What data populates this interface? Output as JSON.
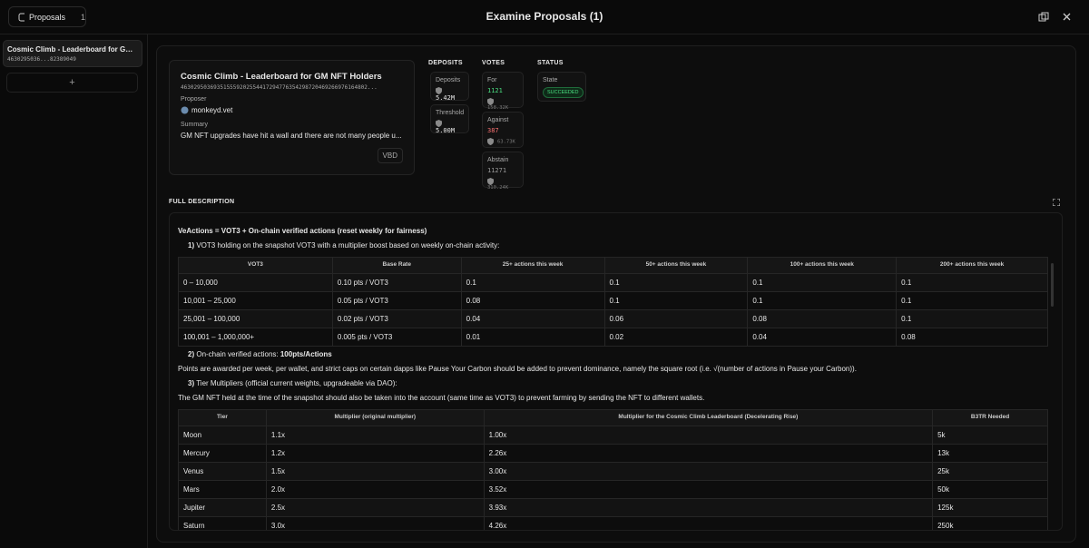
{
  "header": {
    "proposals_button": "Proposals",
    "proposals_count": "1",
    "title": "Examine Proposals (1)"
  },
  "sidebar": {
    "items": [
      {
        "title": "Cosmic Climb - Leaderboard for GM NFT Holders",
        "id": "4630295036...82389049"
      }
    ]
  },
  "proposal": {
    "title": "Cosmic Climb - Leaderboard for GM NFT Holders",
    "id": "463029503693515559202554417294776354298720469266976164802...",
    "proposer_label": "Proposer",
    "proposer": "monkeyd.vet",
    "summary_label": "Summary",
    "summary": "GM NFT upgrades have hit a wall and there are not many people u...",
    "tag": "VBD"
  },
  "deposits": {
    "heading": "DEPOSITS",
    "items": [
      {
        "label": "Deposits",
        "value": "5.42M"
      },
      {
        "label": "Threshold",
        "value": "5.00M"
      }
    ]
  },
  "votes": {
    "heading": "VOTES",
    "items": [
      {
        "label": "For",
        "count": "1121",
        "power": "158.32K"
      },
      {
        "label": "Against",
        "count": "387",
        "power": "63.73K"
      },
      {
        "label": "Abstain",
        "count": "11271",
        "power": "310.24K"
      }
    ]
  },
  "status": {
    "heading": "STATUS",
    "label": "State",
    "value": "SUCCEEDED"
  },
  "description": {
    "heading": "FULL DESCRIPTION",
    "p1": "VeActions = VOT3 + On-chain verified actions (reset weekly for fairness)",
    "p2_num": "1)",
    "p2": " VOT3 holding on the snapshot VOT3 with a multiplier boost based on weekly on-chain activity:",
    "table1": {
      "header": [
        "VOT3",
        "Base Rate",
        "25+ actions this week",
        "50+ actions this week",
        "100+ actions this week",
        "200+ actions this week"
      ],
      "rows": [
        [
          "0 – 10,000",
          "0.10 pts / VOT3",
          "0.1",
          "0.1",
          "0.1",
          "0.1"
        ],
        [
          "10,001 – 25,000",
          "0.05 pts / VOT3",
          "0.08",
          "0.1",
          "0.1",
          "0.1"
        ],
        [
          "25,001 – 100,000",
          "0.02 pts / VOT3",
          "0.04",
          "0.06",
          "0.08",
          "0.1"
        ],
        [
          "100,001 – 1,000,000+",
          "0.005 pts / VOT3",
          "0.01",
          "0.02",
          "0.04",
          "0.08"
        ]
      ]
    },
    "p3_num": "2)",
    "p3": " On-chain verified actions: ",
    "p3_bold": "100pts/Actions",
    "p4": "Points are awarded per week, per wallet, and strict caps on certain dapps like Pause Your Carbon should be added to prevent dominance, namely the square root (i.e. √(number of actions in Pause your Carbon)).",
    "p5_num": "3)",
    "p5": " Tier Multipliers (official current weights, upgradeable via DAO):",
    "p6": "The GM NFT held at the time of the snapshot should also be taken into the account (same time as VOT3) to prevent farming by sending the NFT to different wallets.",
    "table2": {
      "header": [
        "Tier",
        "Multiplier (original multiplier)",
        "Multiplier for the Cosmic Climb Leaderboard (Decelerating Rise)",
        "B3TR Needed"
      ],
      "rows": [
        [
          "Moon",
          "1.1x",
          "1.00x",
          "5k"
        ],
        [
          "Mercury",
          "1.2x",
          "2.26x",
          "13k"
        ],
        [
          "Venus",
          "1.5x",
          "3.00x",
          "25k"
        ],
        [
          "Mars",
          "2.0x",
          "3.52x",
          "50k"
        ],
        [
          "Jupiter",
          "2.5x",
          "3.93x",
          "125k"
        ],
        [
          "Saturn",
          "3.0x",
          "4.26x",
          "250k"
        ]
      ]
    }
  }
}
